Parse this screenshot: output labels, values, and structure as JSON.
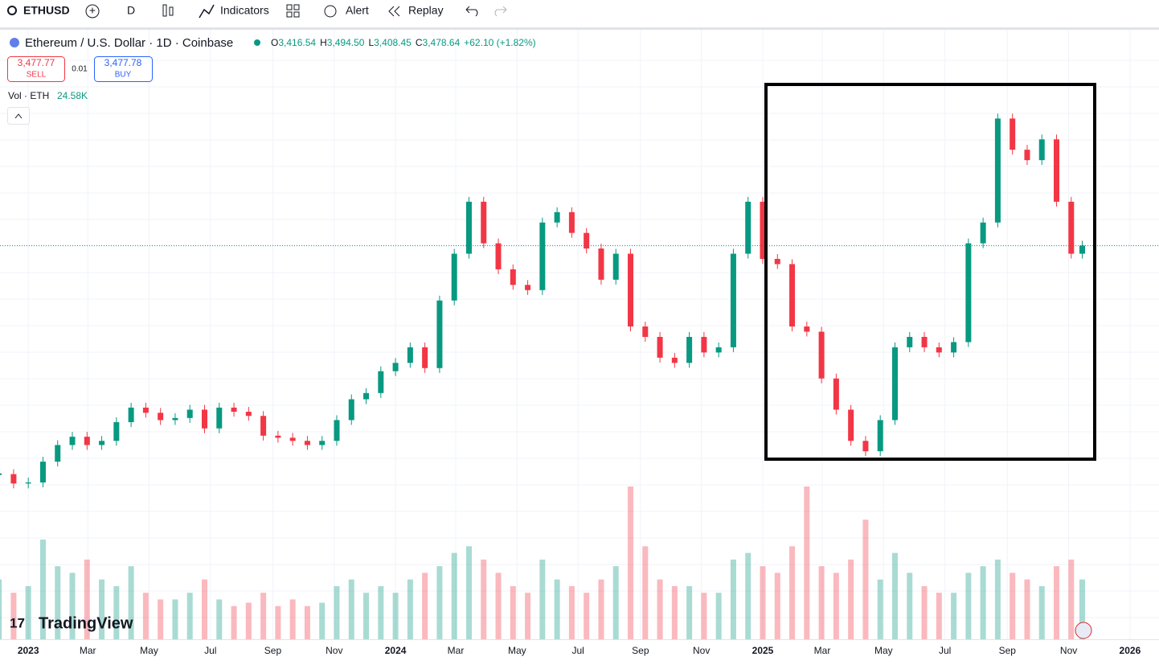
{
  "toolbar": {
    "symbol": "ETHUSD",
    "interval": "D",
    "indicators": "Indicators",
    "alert": "Alert",
    "replay": "Replay"
  },
  "legend": {
    "title": "Ethereum / U.S. Dollar · 1D · Coinbase",
    "o_label": "O",
    "o": "3,416.54",
    "h_label": "H",
    "h": "3,494.50",
    "l_label": "L",
    "l": "3,408.45",
    "c_label": "C",
    "c": "3,478.64",
    "change": "+62.10 (+1.82%)",
    "sell_price": "3,477.77",
    "sell": "SELL",
    "spread": "0.01",
    "buy_price": "3,477.78",
    "buy": "BUY",
    "vol_label": "Vol · ETH",
    "vol": "24.58K"
  },
  "logo": "TradingView",
  "chart_data": {
    "type": "candlestick",
    "up_color": "#089981",
    "down_color": "#f23645",
    "x": [
      2022.92,
      2022.96,
      2023.0,
      2023.04,
      2023.08,
      2023.12,
      2023.16,
      2023.2,
      2023.24,
      2023.28,
      2023.32,
      2023.36,
      2023.4,
      2023.44,
      2023.48,
      2023.52,
      2023.56,
      2023.6,
      2023.64,
      2023.68,
      2023.72,
      2023.76,
      2023.8,
      2023.84,
      2023.88,
      2023.92,
      2023.96,
      2024.0,
      2024.04,
      2024.08,
      2024.12,
      2024.16,
      2024.2,
      2024.24,
      2024.28,
      2024.32,
      2024.36,
      2024.4,
      2024.44,
      2024.48,
      2024.52,
      2024.56,
      2024.6,
      2024.64,
      2024.68,
      2024.72,
      2024.76,
      2024.8,
      2024.84,
      2024.88,
      2024.92,
      2024.96,
      2025.0,
      2025.04,
      2025.08,
      2025.12,
      2025.16,
      2025.2,
      2025.24,
      2025.28,
      2025.32,
      2025.36,
      2025.4,
      2025.44,
      2025.48,
      2025.52,
      2025.56,
      2025.6,
      2025.64,
      2025.68,
      2025.72,
      2025.76,
      2025.8,
      2025.84,
      2025.87
    ],
    "close": [
      1280,
      1190,
      1200,
      1400,
      1560,
      1640,
      1560,
      1600,
      1780,
      1920,
      1870,
      1800,
      1820,
      1900,
      1720,
      1920,
      1880,
      1840,
      1650,
      1630,
      1600,
      1560,
      1600,
      1800,
      2000,
      2060,
      2270,
      2350,
      2500,
      2300,
      2950,
      3400,
      3900,
      3500,
      3250,
      3100,
      3050,
      3700,
      3800,
      3600,
      3450,
      3150,
      3400,
      2700,
      2600,
      2400,
      2350,
      2600,
      2450,
      2500,
      3400,
      3900,
      3350,
      3300,
      2700,
      2650,
      2200,
      1900,
      1600,
      1500,
      1800,
      2500,
      2600,
      2500,
      2450,
      2550,
      3500,
      3700,
      4700,
      4400,
      4300,
      4500,
      3900,
      3400,
      3478.64
    ],
    "volume": [
      90,
      70,
      80,
      150,
      110,
      100,
      120,
      90,
      80,
      110,
      70,
      60,
      60,
      70,
      90,
      60,
      50,
      55,
      70,
      50,
      60,
      50,
      55,
      80,
      90,
      70,
      80,
      70,
      90,
      100,
      110,
      130,
      140,
      120,
      100,
      80,
      70,
      120,
      90,
      80,
      70,
      90,
      110,
      230,
      140,
      90,
      80,
      80,
      70,
      70,
      120,
      130,
      110,
      100,
      140,
      230,
      110,
      100,
      120,
      180,
      90,
      130,
      100,
      80,
      70,
      70,
      100,
      110,
      120,
      100,
      90,
      80,
      110,
      120,
      90
    ],
    "xlim": [
      2022.923,
      2026.079
    ],
    "ylim": [
      -308,
      5554
    ],
    "vlim": [
      0,
      230
    ],
    "xticks": [
      {
        "value": 2023,
        "label": "2023"
      },
      {
        "value": 2023.162,
        "label": "Mar"
      },
      {
        "value": 2023.329,
        "label": "May"
      },
      {
        "value": 2023.496,
        "label": "Jul"
      },
      {
        "value": 2023.666,
        "label": "Sep"
      },
      {
        "value": 2023.833,
        "label": "Nov"
      },
      {
        "value": 2024,
        "label": "2024"
      },
      {
        "value": 2024.164,
        "label": "Mar"
      },
      {
        "value": 2024.331,
        "label": "May"
      },
      {
        "value": 2024.497,
        "label": "Jul"
      },
      {
        "value": 2024.667,
        "label": "Sep"
      },
      {
        "value": 2024.833,
        "label": "Nov"
      },
      {
        "value": 2025,
        "label": "2025"
      },
      {
        "value": 2025.162,
        "label": "Mar"
      },
      {
        "value": 2025.329,
        "label": "May"
      },
      {
        "value": 2025.496,
        "label": "Jul"
      },
      {
        "value": 2025.666,
        "label": "Sep"
      },
      {
        "value": 2025.833,
        "label": "Nov"
      },
      {
        "value": 2026,
        "label": "2026"
      }
    ],
    "grid": true
  }
}
